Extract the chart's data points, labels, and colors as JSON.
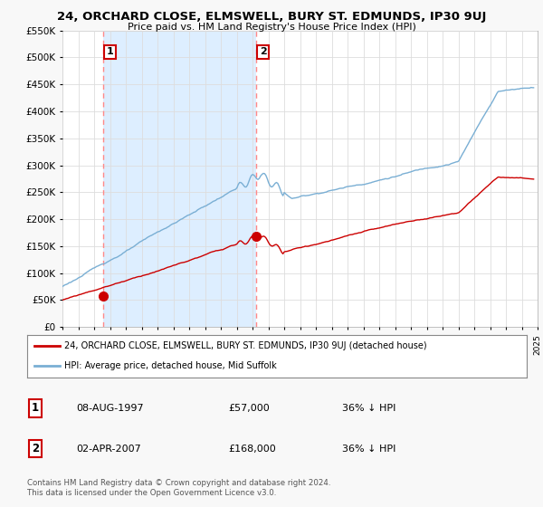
{
  "title": "24, ORCHARD CLOSE, ELMSWELL, BURY ST. EDMUNDS, IP30 9UJ",
  "subtitle": "Price paid vs. HM Land Registry's House Price Index (HPI)",
  "background_color": "#f8f8f8",
  "plot_background": "#ffffff",
  "grid_color": "#dddddd",
  "hpi_color": "#7aafd4",
  "price_color": "#cc0000",
  "shade_color": "#ddeeff",
  "transaction1_date": 1997.59,
  "transaction1_price": 57000,
  "transaction2_date": 2007.25,
  "transaction2_price": 168000,
  "xmin": 1995,
  "xmax": 2025,
  "ymin": 0,
  "ymax": 550000,
  "legend_price_label": "24, ORCHARD CLOSE, ELMSWELL, BURY ST. EDMUNDS, IP30 9UJ (detached house)",
  "legend_hpi_label": "HPI: Average price, detached house, Mid Suffolk",
  "table_row1": [
    "1",
    "08-AUG-1997",
    "£57,000",
    "36% ↓ HPI"
  ],
  "table_row2": [
    "2",
    "02-APR-2007",
    "£168,000",
    "36% ↓ HPI"
  ],
  "footnote": "Contains HM Land Registry data © Crown copyright and database right 2024.\nThis data is licensed under the Open Government Licence v3.0."
}
